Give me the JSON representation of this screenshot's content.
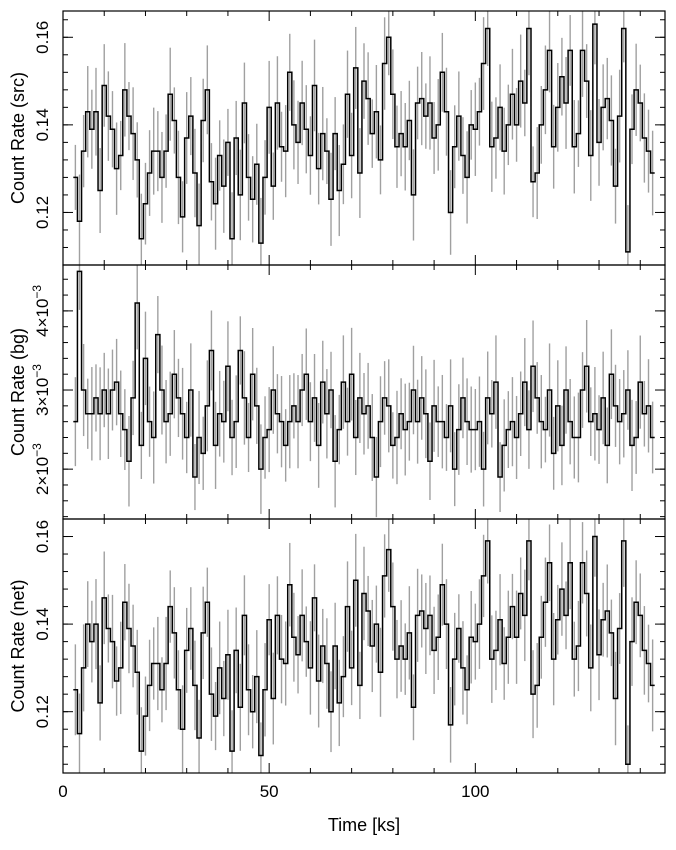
{
  "chart_data": {
    "type": "line",
    "style": "binned step light curve with error bars",
    "xlabel": "Time [ks]",
    "xlim": [
      0,
      146
    ],
    "x_ticks": [
      0,
      50,
      100
    ],
    "x_tick_labels": [
      "0",
      "50",
      "100"
    ],
    "colors": {
      "step": "#000000",
      "error_bar": "#a0a0a0",
      "axes": "#000000"
    },
    "panels": [
      {
        "id": "src",
        "ylabel": "Count Rate (src)",
        "ylim": [
          0.108,
          0.166
        ],
        "y_ticks": [
          0.12,
          0.14,
          0.16
        ],
        "y_tick_labels": [
          "0.12",
          "0.14",
          "0.16"
        ],
        "bins": {
          "t_start": 2.5,
          "bin_width": 1.0,
          "values": [
            0.128,
            0.118,
            0.134,
            0.143,
            0.139,
            0.143,
            0.125,
            0.149,
            0.142,
            0.139,
            0.13,
            0.133,
            0.148,
            0.142,
            0.138,
            0.132,
            0.114,
            0.122,
            0.129,
            0.134,
            0.134,
            0.128,
            0.134,
            0.147,
            0.141,
            0.128,
            0.119,
            0.137,
            0.142,
            0.129,
            0.117,
            0.141,
            0.148,
            0.127,
            0.122,
            0.133,
            0.126,
            0.136,
            0.114,
            0.137,
            0.124,
            0.145,
            0.128,
            0.123,
            0.131,
            0.113,
            0.128,
            0.144,
            0.126,
            0.145,
            0.135,
            0.134,
            0.152,
            0.14,
            0.136,
            0.145,
            0.139,
            0.133,
            0.149,
            0.13,
            0.138,
            0.134,
            0.123,
            0.138,
            0.125,
            0.131,
            0.147,
            0.133,
            0.153,
            0.129,
            0.15,
            0.146,
            0.138,
            0.143,
            0.132,
            0.154,
            0.16,
            0.147,
            0.135,
            0.138,
            0.135,
            0.141,
            0.124,
            0.145,
            0.146,
            0.142,
            0.145,
            0.137,
            0.14,
            0.152,
            0.143,
            0.12,
            0.135,
            0.142,
            0.133,
            0.128,
            0.14,
            0.139,
            0.143,
            0.154,
            0.162,
            0.135,
            0.137,
            0.144,
            0.134,
            0.14,
            0.147,
            0.14,
            0.15,
            0.145,
            0.162,
            0.127,
            0.129,
            0.14,
            0.148,
            0.157,
            0.135,
            0.144,
            0.151,
            0.145,
            0.157,
            0.135,
            0.138,
            0.157,
            0.15,
            0.133,
            0.163,
            0.136,
            0.144,
            0.146,
            0.141,
            0.126,
            0.142,
            0.162,
            0.111,
            0.139,
            0.148,
            0.145,
            0.137,
            0.134,
            0.129
          ]
        }
      },
      {
        "id": "bg",
        "ylabel": "Count Rate (bg)",
        "ylim": [
          0.00137,
          0.00458
        ],
        "y_ticks": [
          0.002,
          0.003,
          0.004
        ],
        "y_tick_mantissas": [
          "2",
          "3",
          "4"
        ],
        "y_tick_exponent": "−3",
        "bins": {
          "t_start": 2.5,
          "bin_width": 1.0,
          "values": [
            0.0026,
            0.0045,
            0.003,
            0.0027,
            0.0027,
            0.0029,
            0.0027,
            0.003,
            0.0027,
            0.003,
            0.0031,
            0.0027,
            0.0025,
            0.0021,
            0.0029,
            0.0041,
            0.0023,
            0.0034,
            0.0026,
            0.0024,
            0.0037,
            0.003,
            0.0026,
            0.0027,
            0.0032,
            0.0029,
            0.0027,
            0.0024,
            0.003,
            0.0019,
            0.0024,
            0.0022,
            0.0028,
            0.0035,
            0.0023,
            0.0027,
            0.0026,
            0.0033,
            0.0024,
            0.0026,
            0.0035,
            0.0029,
            0.0024,
            0.0032,
            0.0028,
            0.002,
            0.0024,
            0.0025,
            0.003,
            0.0027,
            0.0026,
            0.0023,
            0.0026,
            0.0028,
            0.0026,
            0.003,
            0.0032,
            0.0026,
            0.0029,
            0.0023,
            0.0031,
            0.0027,
            0.003,
            0.0021,
            0.0025,
            0.0031,
            0.0026,
            0.0032,
            0.0024,
            0.0029,
            0.0027,
            0.0028,
            0.0024,
            0.0019,
            0.0026,
            0.0029,
            0.0028,
            0.0023,
            0.0024,
            0.0027,
            0.0025,
            0.0026,
            0.003,
            0.0026,
            0.0029,
            0.0027,
            0.0021,
            0.0028,
            0.0026,
            0.0026,
            0.0024,
            0.0028,
            0.002,
            0.0025,
            0.0029,
            0.0026,
            0.0025,
            0.0025,
            0.0026,
            0.002,
            0.0029,
            0.0027,
            0.0031,
            0.0019,
            0.0023,
            0.0025,
            0.0026,
            0.0024,
            0.0027,
            0.0031,
            0.0025,
            0.0033,
            0.0029,
            0.0026,
            0.0025,
            0.003,
            0.0022,
            0.0028,
            0.0023,
            0.003,
            0.0026,
            0.0024,
            0.0024,
            0.003,
            0.0033,
            0.0026,
            0.0027,
            0.0025,
            0.0029,
            0.0023,
            0.0032,
            0.0028,
            0.0026,
            0.0027,
            0.003,
            0.0023,
            0.0024,
            0.0031,
            0.0027,
            0.0028,
            0.0024
          ]
        }
      },
      {
        "id": "net",
        "ylabel": "Count Rate (net)",
        "ylim": [
          0.106,
          0.164
        ],
        "y_ticks": [
          0.12,
          0.14,
          0.16
        ],
        "y_tick_labels": [
          "0.12",
          "0.14",
          "0.16"
        ],
        "bins": {
          "t_start": 2.5,
          "bin_width": 1.0,
          "values": [
            0.125,
            0.115,
            0.13,
            0.14,
            0.136,
            0.14,
            0.122,
            0.146,
            0.139,
            0.136,
            0.127,
            0.13,
            0.145,
            0.139,
            0.135,
            0.129,
            0.111,
            0.119,
            0.126,
            0.131,
            0.131,
            0.125,
            0.131,
            0.144,
            0.138,
            0.125,
            0.116,
            0.134,
            0.139,
            0.126,
            0.114,
            0.138,
            0.145,
            0.124,
            0.119,
            0.13,
            0.123,
            0.133,
            0.111,
            0.134,
            0.121,
            0.142,
            0.125,
            0.12,
            0.128,
            0.11,
            0.125,
            0.141,
            0.123,
            0.142,
            0.132,
            0.131,
            0.149,
            0.137,
            0.133,
            0.142,
            0.136,
            0.13,
            0.146,
            0.127,
            0.135,
            0.131,
            0.12,
            0.135,
            0.122,
            0.128,
            0.144,
            0.13,
            0.15,
            0.126,
            0.147,
            0.143,
            0.135,
            0.14,
            0.129,
            0.151,
            0.157,
            0.144,
            0.132,
            0.135,
            0.132,
            0.138,
            0.121,
            0.142,
            0.143,
            0.139,
            0.142,
            0.134,
            0.137,
            0.149,
            0.14,
            0.117,
            0.132,
            0.139,
            0.13,
            0.125,
            0.137,
            0.136,
            0.14,
            0.151,
            0.159,
            0.132,
            0.134,
            0.141,
            0.131,
            0.137,
            0.144,
            0.137,
            0.147,
            0.142,
            0.159,
            0.124,
            0.126,
            0.137,
            0.145,
            0.154,
            0.132,
            0.141,
            0.148,
            0.142,
            0.154,
            0.132,
            0.135,
            0.154,
            0.147,
            0.13,
            0.16,
            0.133,
            0.141,
            0.143,
            0.138,
            0.123,
            0.139,
            0.159,
            0.108,
            0.136,
            0.145,
            0.142,
            0.134,
            0.131,
            0.126
          ]
        }
      }
    ]
  }
}
